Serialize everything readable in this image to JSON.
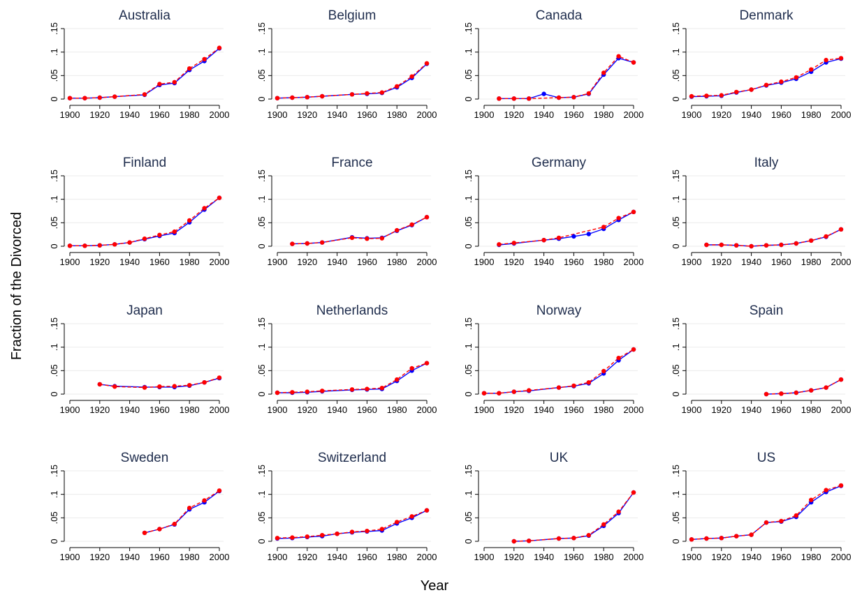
{
  "figure": {
    "ylabel": "Fraction of the Divorced",
    "xlabel": "Year"
  },
  "style": {
    "series_a_color": "#0000ff",
    "series_b_color": "#ff0000",
    "title_color": "#1f2d4d",
    "grid_color": "#ebebeb"
  },
  "chart_data": [
    {
      "type": "line",
      "title": "Australia",
      "xlim": [
        1900,
        2000
      ],
      "ylim": [
        0,
        0.15
      ],
      "xticks": [
        "1900",
        "1920",
        "1940",
        "1960",
        "1980",
        "2000"
      ],
      "yticks": [
        "0",
        ".05",
        ".1",
        ".15"
      ],
      "grid": true,
      "x": [
        1900,
        1910,
        1920,
        1930,
        1950,
        1960,
        1970,
        1980,
        1990,
        2000
      ],
      "series": [
        {
          "line": "solid",
          "values": [
            0.002,
            0.002,
            0.003,
            0.005,
            0.009,
            0.03,
            0.034,
            0.062,
            0.081,
            0.108
          ]
        },
        {
          "line": "dashed",
          "values": [
            0.002,
            0.002,
            0.003,
            0.005,
            0.01,
            0.032,
            0.036,
            0.065,
            0.085,
            0.109
          ]
        }
      ]
    },
    {
      "type": "line",
      "title": "Belgium",
      "xlim": [
        1900,
        2000
      ],
      "ylim": [
        0,
        0.15
      ],
      "xticks": [
        "1900",
        "1920",
        "1940",
        "1960",
        "1980",
        "2000"
      ],
      "yticks": [
        "0",
        ".05",
        ".1",
        ".15"
      ],
      "grid": true,
      "x": [
        1900,
        1910,
        1920,
        1930,
        1950,
        1960,
        1970,
        1980,
        1990,
        2000
      ],
      "series": [
        {
          "line": "solid",
          "values": [
            0.002,
            0.003,
            0.004,
            0.006,
            0.01,
            0.011,
            0.013,
            0.025,
            0.045,
            0.075
          ]
        },
        {
          "line": "dashed",
          "values": [
            0.002,
            0.003,
            0.004,
            0.006,
            0.01,
            0.012,
            0.014,
            0.027,
            0.048,
            0.076
          ]
        }
      ]
    },
    {
      "type": "line",
      "title": "Canada",
      "xlim": [
        1900,
        2000
      ],
      "ylim": [
        0,
        0.15
      ],
      "xticks": [
        "1900",
        "1920",
        "1940",
        "1960",
        "1980",
        "2000"
      ],
      "yticks": [
        "0",
        ".05",
        ".1",
        ".15"
      ],
      "grid": true,
      "x": [
        1910,
        1920,
        1930,
        1940,
        1950,
        1960,
        1970,
        1980,
        1990,
        2000
      ],
      "series": [
        {
          "line": "solid",
          "values": [
            0.001,
            0.001,
            0.001,
            0.011,
            0.003,
            0.004,
            0.011,
            0.052,
            0.087,
            0.078
          ]
        },
        {
          "line": "dashed",
          "values": [
            0.001,
            0.001,
            0.001,
            null,
            0.003,
            0.004,
            0.012,
            0.056,
            0.091,
            0.078
          ]
        }
      ]
    },
    {
      "type": "line",
      "title": "Denmark",
      "xlim": [
        1900,
        2000
      ],
      "ylim": [
        0,
        0.15
      ],
      "xticks": [
        "1900",
        "1920",
        "1940",
        "1960",
        "1980",
        "2000"
      ],
      "yticks": [
        "0",
        ".05",
        ".1",
        ".15"
      ],
      "grid": true,
      "x": [
        1900,
        1910,
        1920,
        1930,
        1940,
        1950,
        1960,
        1970,
        1980,
        1990,
        2000
      ],
      "series": [
        {
          "line": "solid",
          "values": [
            0.005,
            0.006,
            0.007,
            0.014,
            0.02,
            0.029,
            0.035,
            0.043,
            0.058,
            0.078,
            0.086
          ]
        },
        {
          "line": "dashed",
          "values": [
            0.006,
            0.007,
            0.008,
            0.015,
            0.02,
            0.03,
            0.037,
            0.046,
            0.063,
            0.083,
            0.087
          ]
        }
      ]
    },
    {
      "type": "line",
      "title": "Finland",
      "xlim": [
        1900,
        2000
      ],
      "ylim": [
        0,
        0.15
      ],
      "xticks": [
        "1900",
        "1920",
        "1940",
        "1960",
        "1980",
        "2000"
      ],
      "yticks": [
        "0",
        ".05",
        ".1",
        ".15"
      ],
      "grid": true,
      "x": [
        1900,
        1910,
        1920,
        1930,
        1940,
        1950,
        1960,
        1970,
        1980,
        1990,
        2000
      ],
      "series": [
        {
          "line": "solid",
          "values": [
            0.001,
            0.001,
            0.002,
            0.004,
            0.008,
            0.015,
            0.022,
            0.028,
            0.051,
            0.078,
            0.103
          ]
        },
        {
          "line": "dashed",
          "values": [
            0.001,
            0.001,
            0.002,
            0.004,
            0.008,
            0.016,
            0.024,
            0.031,
            0.055,
            0.081,
            0.103
          ]
        }
      ]
    },
    {
      "type": "line",
      "title": "France",
      "xlim": [
        1900,
        2000
      ],
      "ylim": [
        0,
        0.15
      ],
      "xticks": [
        "1900",
        "1920",
        "1940",
        "1960",
        "1980",
        "2000"
      ],
      "yticks": [
        "0",
        ".05",
        ".1",
        ".15"
      ],
      "grid": true,
      "x": [
        1910,
        1920,
        1930,
        1950,
        1960,
        1970,
        1980,
        1990,
        2000
      ],
      "series": [
        {
          "line": "solid",
          "values": [
            0.005,
            0.006,
            0.008,
            0.019,
            0.017,
            0.018,
            0.033,
            0.045,
            0.062
          ]
        },
        {
          "line": "dashed",
          "values": [
            0.005,
            0.006,
            0.008,
            0.018,
            0.016,
            0.017,
            0.034,
            0.046,
            0.062
          ]
        }
      ]
    },
    {
      "type": "line",
      "title": "Germany",
      "xlim": [
        1900,
        2000
      ],
      "ylim": [
        0,
        0.15
      ],
      "xticks": [
        "1900",
        "1920",
        "1940",
        "1960",
        "1980",
        "2000"
      ],
      "yticks": [
        "0",
        ".05",
        ".1",
        ".15"
      ],
      "grid": true,
      "x": [
        1910,
        1920,
        1940,
        1950,
        1960,
        1970,
        1980,
        1990,
        2000
      ],
      "series": [
        {
          "line": "solid",
          "values": [
            0.003,
            0.006,
            0.013,
            0.016,
            0.021,
            0.026,
            0.037,
            0.056,
            0.073
          ]
        },
        {
          "line": "dashed",
          "values": [
            0.004,
            0.007,
            0.013,
            0.018,
            null,
            null,
            0.041,
            0.06,
            0.073
          ]
        }
      ]
    },
    {
      "type": "line",
      "title": "Italy",
      "xlim": [
        1900,
        2000
      ],
      "ylim": [
        0,
        0.15
      ],
      "xticks": [
        "1900",
        "1920",
        "1940",
        "1960",
        "1980",
        "2000"
      ],
      "yticks": [
        "0",
        ".05",
        ".1",
        ".15"
      ],
      "grid": true,
      "x": [
        1910,
        1920,
        1930,
        1940,
        1950,
        1960,
        1970,
        1980,
        1990,
        2000
      ],
      "series": [
        {
          "line": "solid",
          "values": [
            0.003,
            0.003,
            0.002,
            0.0,
            0.002,
            0.003,
            0.006,
            0.012,
            0.02,
            0.036
          ]
        },
        {
          "line": "dashed",
          "values": [
            0.003,
            0.003,
            0.002,
            0.0,
            0.002,
            0.003,
            0.006,
            0.012,
            0.021,
            0.036
          ]
        }
      ]
    },
    {
      "type": "line",
      "title": "Japan",
      "xlim": [
        1900,
        2000
      ],
      "ylim": [
        0,
        0.15
      ],
      "xticks": [
        "1900",
        "1920",
        "1940",
        "1960",
        "1980",
        "2000"
      ],
      "yticks": [
        "0",
        ".05",
        ".1",
        ".15"
      ],
      "grid": true,
      "x": [
        1920,
        1930,
        1950,
        1960,
        1970,
        1980,
        1990,
        2000
      ],
      "series": [
        {
          "line": "solid",
          "values": [
            0.021,
            0.017,
            0.015,
            0.015,
            0.015,
            0.018,
            0.025,
            0.034
          ]
        },
        {
          "line": "dashed",
          "values": [
            0.021,
            0.016,
            0.014,
            0.016,
            0.017,
            0.019,
            0.025,
            0.035
          ]
        }
      ]
    },
    {
      "type": "line",
      "title": "Netherlands",
      "xlim": [
        1900,
        2000
      ],
      "ylim": [
        0,
        0.15
      ],
      "xticks": [
        "1900",
        "1920",
        "1940",
        "1960",
        "1980",
        "2000"
      ],
      "yticks": [
        "0",
        ".05",
        ".1",
        ".15"
      ],
      "grid": true,
      "x": [
        1900,
        1910,
        1920,
        1930,
        1950,
        1960,
        1970,
        1980,
        1990,
        2000
      ],
      "series": [
        {
          "line": "solid",
          "values": [
            0.003,
            0.003,
            0.004,
            0.006,
            0.009,
            0.01,
            0.011,
            0.028,
            0.05,
            0.066
          ]
        },
        {
          "line": "dashed",
          "values": [
            0.003,
            0.004,
            0.005,
            0.007,
            0.01,
            0.011,
            0.013,
            0.031,
            0.055,
            0.066
          ]
        }
      ]
    },
    {
      "type": "line",
      "title": "Norway",
      "xlim": [
        1900,
        2000
      ],
      "ylim": [
        0,
        0.15
      ],
      "xticks": [
        "1900",
        "1920",
        "1940",
        "1960",
        "1980",
        "2000"
      ],
      "yticks": [
        "0",
        ".05",
        ".1",
        ".15"
      ],
      "grid": true,
      "x": [
        1900,
        1910,
        1920,
        1930,
        1950,
        1960,
        1970,
        1980,
        1990,
        2000
      ],
      "series": [
        {
          "line": "solid",
          "values": [
            0.002,
            0.002,
            0.005,
            0.007,
            0.014,
            0.017,
            0.023,
            0.044,
            0.072,
            0.095
          ]
        },
        {
          "line": "dashed",
          "values": [
            0.002,
            0.002,
            0.005,
            0.008,
            0.014,
            0.018,
            0.025,
            0.049,
            0.077,
            0.095
          ]
        }
      ]
    },
    {
      "type": "line",
      "title": "Spain",
      "xlim": [
        1900,
        2000
      ],
      "ylim": [
        0,
        0.15
      ],
      "xticks": [
        "1900",
        "1920",
        "1940",
        "1960",
        "1980",
        "2000"
      ],
      "yticks": [
        "0",
        ".05",
        ".1",
        ".15"
      ],
      "grid": true,
      "x": [
        1950,
        1960,
        1970,
        1980,
        1990,
        2000
      ],
      "series": [
        {
          "line": "solid",
          "values": [
            0.0,
            0.001,
            0.003,
            0.008,
            0.014,
            0.031
          ]
        },
        {
          "line": "dashed",
          "values": [
            0.0,
            0.001,
            0.003,
            0.008,
            0.014,
            0.031
          ]
        }
      ]
    },
    {
      "type": "line",
      "title": "Sweden",
      "xlim": [
        1900,
        2000
      ],
      "ylim": [
        0,
        0.15
      ],
      "xticks": [
        "1900",
        "1920",
        "1940",
        "1960",
        "1980",
        "2000"
      ],
      "yticks": [
        "0",
        ".05",
        ".1",
        ".15"
      ],
      "grid": true,
      "x": [
        1950,
        1960,
        1970,
        1980,
        1990,
        2000
      ],
      "series": [
        {
          "line": "solid",
          "values": [
            0.018,
            0.026,
            0.036,
            0.068,
            0.083,
            0.107
          ]
        },
        {
          "line": "dashed",
          "values": [
            0.018,
            0.026,
            0.037,
            0.071,
            0.087,
            0.108
          ]
        }
      ]
    },
    {
      "type": "line",
      "title": "Switzerland",
      "xlim": [
        1900,
        2000
      ],
      "ylim": [
        0,
        0.15
      ],
      "xticks": [
        "1900",
        "1920",
        "1940",
        "1960",
        "1980",
        "2000"
      ],
      "yticks": [
        "0",
        ".05",
        ".1",
        ".15"
      ],
      "grid": true,
      "x": [
        1900,
        1910,
        1920,
        1930,
        1940,
        1950,
        1960,
        1970,
        1980,
        1990,
        2000
      ],
      "series": [
        {
          "line": "solid",
          "values": [
            0.006,
            0.007,
            0.009,
            0.011,
            0.016,
            0.019,
            0.021,
            0.023,
            0.038,
            0.05,
            0.066
          ]
        },
        {
          "line": "dashed",
          "values": [
            0.007,
            0.008,
            0.01,
            0.013,
            0.016,
            0.02,
            0.022,
            0.026,
            0.041,
            0.053,
            0.066
          ]
        }
      ]
    },
    {
      "type": "line",
      "title": "UK",
      "xlim": [
        1900,
        2000
      ],
      "ylim": [
        0,
        0.15
      ],
      "xticks": [
        "1900",
        "1920",
        "1940",
        "1960",
        "1980",
        "2000"
      ],
      "yticks": [
        "0",
        ".05",
        ".1",
        ".15"
      ],
      "grid": true,
      "x": [
        1920,
        1930,
        1950,
        1960,
        1970,
        1980,
        1990,
        2000
      ],
      "series": [
        {
          "line": "solid",
          "values": [
            0.0,
            0.001,
            0.006,
            0.007,
            0.012,
            0.033,
            0.06,
            0.104
          ]
        },
        {
          "line": "dashed",
          "values": [
            0.0,
            0.001,
            0.006,
            0.007,
            0.013,
            0.036,
            0.063,
            0.104
          ]
        }
      ]
    },
    {
      "type": "line",
      "title": "US",
      "xlim": [
        1900,
        2000
      ],
      "ylim": [
        0,
        0.15
      ],
      "xticks": [
        "1900",
        "1920",
        "1940",
        "1960",
        "1980",
        "2000"
      ],
      "yticks": [
        "0",
        ".05",
        ".1",
        ".15"
      ],
      "grid": true,
      "x": [
        1900,
        1910,
        1920,
        1930,
        1940,
        1950,
        1960,
        1970,
        1980,
        1990,
        2000
      ],
      "series": [
        {
          "line": "solid",
          "values": [
            0.004,
            0.006,
            0.007,
            0.011,
            0.014,
            0.04,
            0.042,
            0.052,
            0.083,
            0.105,
            0.118
          ]
        },
        {
          "line": "dashed",
          "values": [
            0.004,
            0.006,
            0.007,
            0.011,
            0.014,
            0.04,
            0.043,
            0.055,
            0.088,
            0.109,
            0.119
          ]
        }
      ]
    }
  ]
}
